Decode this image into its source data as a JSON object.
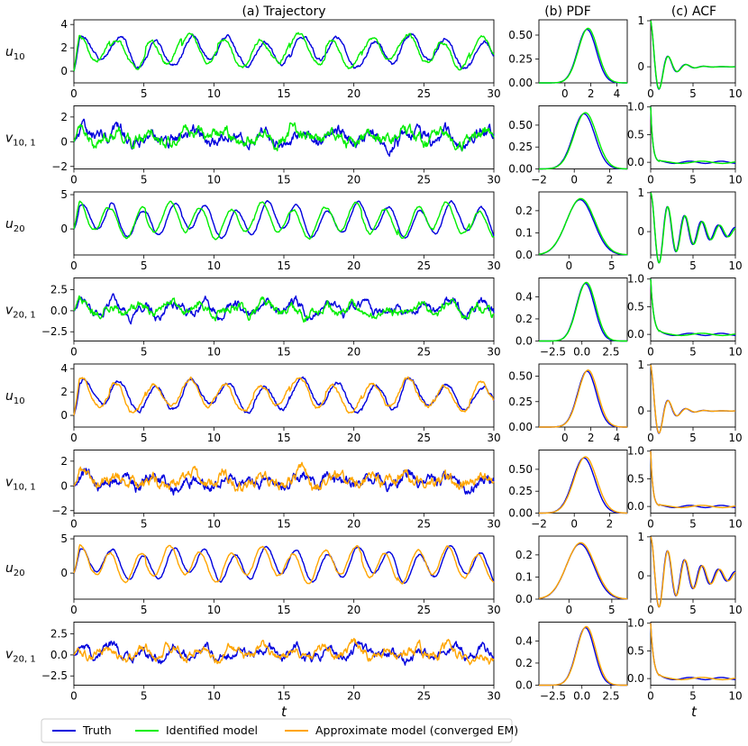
{
  "column_titles": {
    "trajectory": "(a) Trajectory",
    "pdf": "(b) PDF",
    "acf": "(c) ACF"
  },
  "xlabels": {
    "trajectory": "t",
    "acf": "t"
  },
  "legend": [
    {
      "key": "truth",
      "label": "Truth",
      "color": "#0000dd"
    },
    {
      "key": "identified",
      "label": "Identified model",
      "color": "#00ee00"
    },
    {
      "key": "approx",
      "label": "Approximate model (converged EM)",
      "color": "#ffa500"
    }
  ],
  "chart_data": {
    "type": "line",
    "description_rows": 8,
    "rows": [
      {
        "label_base": "u",
        "label_sub": "10",
        "compare": "identified",
        "trajectory": {
          "xlim": [
            0,
            30
          ],
          "ylim": [
            -1,
            4.4
          ],
          "yticks": [
            "0",
            "2",
            "4"
          ],
          "ytick_values": [
            0,
            2,
            4
          ],
          "mean": 1.7,
          "amp": 1.1,
          "noise": 0.15,
          "period": 2.6,
          "seed": 1
        },
        "pdf": {
          "xlim": [
            -2,
            4.8
          ],
          "ylim": [
            0,
            0.66
          ],
          "xticks": [
            "0",
            "2",
            "4"
          ],
          "xtick_values": [
            0,
            2,
            4
          ],
          "yticks": [
            "0.00",
            "0.25",
            "0.50"
          ],
          "ytick_values": [
            0,
            0.25,
            0.5
          ],
          "mu": 1.7,
          "sigma": 0.72,
          "peak": 0.56
        },
        "acf": {
          "xlim": [
            0,
            10
          ],
          "ylim": [
            -0.35,
            1.02
          ],
          "xticks": [
            "0",
            "5",
            "10"
          ],
          "xtick_values": [
            0,
            5,
            10
          ],
          "yticks": [
            "0",
            "1"
          ],
          "ytick_values": [
            0,
            1
          ],
          "decay": 1.4,
          "period": 2.1,
          "floor": 0.0
        }
      },
      {
        "label_base": "v",
        "label_sub": "10, 1",
        "compare": "identified",
        "trajectory": {
          "xlim": [
            0,
            30
          ],
          "ylim": [
            -2.2,
            2.9
          ],
          "yticks": [
            "−2",
            "0",
            "2"
          ],
          "ytick_values": [
            -2,
            0,
            2
          ],
          "mean": 0.4,
          "amp": 0.35,
          "noise": 0.45,
          "period": 2.6,
          "seed": 2
        },
        "pdf": {
          "xlim": [
            -2,
            3
          ],
          "ylim": [
            0,
            0.72
          ],
          "xticks": [
            "−2",
            "0",
            "2"
          ],
          "xtick_values": [
            -2,
            0,
            2
          ],
          "yticks": [
            "0.00",
            "0.25",
            "0.50"
          ],
          "ytick_values": [
            0,
            0.25,
            0.5
          ],
          "mu": 0.55,
          "sigma": 0.62,
          "peak": 0.63
        },
        "acf": {
          "xlim": [
            0,
            10
          ],
          "ylim": [
            -0.12,
            1.02
          ],
          "xticks": [
            "0",
            "5",
            "10"
          ],
          "xtick_values": [
            0,
            5,
            10
          ],
          "yticks": [
            "0.0",
            "0.5",
            "1.0"
          ],
          "ytick_values": [
            0,
            0.5,
            1
          ],
          "decay": 0.25,
          "period": 0,
          "floor": 0.0
        }
      },
      {
        "label_base": "u",
        "label_sub": "20",
        "compare": "identified",
        "trajectory": {
          "xlim": [
            0,
            30
          ],
          "ylim": [
            -3.8,
            5.4
          ],
          "yticks": [
            "0",
            "5"
          ],
          "ytick_values": [
            0,
            5
          ],
          "mean": 1.3,
          "amp": 2.0,
          "noise": 0.15,
          "period": 2.2,
          "seed": 3
        },
        "pdf": {
          "xlim": [
            -3.5,
            6.8
          ],
          "ylim": [
            0,
            0.285
          ],
          "xticks": [
            "0",
            "5"
          ],
          "xtick_values": [
            0,
            5
          ],
          "yticks": [
            "0.0",
            "0.1",
            "0.2"
          ],
          "ytick_values": [
            0,
            0.1,
            0.2
          ],
          "mu": 1.3,
          "sigma": 1.6,
          "peak": 0.25
        },
        "acf": {
          "xlim": [
            0,
            10
          ],
          "ylim": [
            -0.6,
            1.02
          ],
          "xticks": [
            "0",
            "5",
            "10"
          ],
          "xtick_values": [
            0,
            5,
            10
          ],
          "yticks": [
            "0",
            "1"
          ],
          "ytick_values": [
            0,
            1
          ],
          "decay": 4.5,
          "period": 2.0,
          "floor": 0.0
        }
      },
      {
        "label_base": "v",
        "label_sub": "20, 1",
        "compare": "identified",
        "trajectory": {
          "xlim": [
            0,
            30
          ],
          "ylim": [
            -3.6,
            3.9
          ],
          "yticks": [
            "−2.5",
            "0.0",
            "2.5"
          ],
          "ytick_values": [
            -2.5,
            0,
            2.5
          ],
          "mean": 0.2,
          "amp": 0.6,
          "noise": 0.5,
          "period": 2.2,
          "seed": 4
        },
        "pdf": {
          "xlim": [
            -3.7,
            3.9
          ],
          "ylim": [
            0,
            0.57
          ],
          "xticks": [
            "−2.5",
            "0.0",
            "2.5"
          ],
          "xtick_values": [
            -2.5,
            0,
            2.5
          ],
          "yticks": [
            "0.0",
            "0.2",
            "0.4"
          ],
          "ytick_values": [
            0,
            0.2,
            0.4
          ],
          "mu": 0.3,
          "sigma": 0.78,
          "peak": 0.52
        },
        "acf": {
          "xlim": [
            0,
            10
          ],
          "ylim": [
            -0.12,
            1.02
          ],
          "xticks": [
            "0",
            "5",
            "10"
          ],
          "xtick_values": [
            0,
            5,
            10
          ],
          "yticks": [
            "0.0",
            "0.5",
            "1.0"
          ],
          "ytick_values": [
            0,
            0.5,
            1
          ],
          "decay": 0.35,
          "period": 0,
          "floor": 0.0
        }
      },
      {
        "label_base": "u",
        "label_sub": "10",
        "compare": "approx",
        "trajectory": {
          "xlim": [
            0,
            30
          ],
          "ylim": [
            -1,
            4.4
          ],
          "yticks": [
            "0",
            "2",
            "4"
          ],
          "ytick_values": [
            0,
            2,
            4
          ],
          "mean": 1.7,
          "amp": 1.1,
          "noise": 0.15,
          "period": 2.6,
          "seed": 5
        },
        "pdf": {
          "xlim": [
            -2,
            4.8
          ],
          "ylim": [
            0,
            0.62
          ],
          "xticks": [
            "0",
            "2",
            "4"
          ],
          "xtick_values": [
            0,
            2,
            4
          ],
          "yticks": [
            "0.00",
            "0.25",
            "0.50"
          ],
          "ytick_values": [
            0,
            0.25,
            0.5
          ],
          "mu": 1.7,
          "sigma": 0.72,
          "peak": 0.55
        },
        "acf": {
          "xlim": [
            0,
            10
          ],
          "ylim": [
            -0.35,
            1.02
          ],
          "xticks": [
            "0",
            "5",
            "10"
          ],
          "xtick_values": [
            0,
            5,
            10
          ],
          "yticks": [
            "0",
            "1"
          ],
          "ytick_values": [
            0,
            1
          ],
          "decay": 1.4,
          "period": 2.1,
          "floor": 0.0
        }
      },
      {
        "label_base": "v",
        "label_sub": "10, 1",
        "compare": "approx",
        "trajectory": {
          "xlim": [
            0,
            30
          ],
          "ylim": [
            -2.2,
            2.9
          ],
          "yticks": [
            "−2",
            "0",
            "2"
          ],
          "ytick_values": [
            -2,
            0,
            2
          ],
          "mean": 0.4,
          "amp": 0.35,
          "noise": 0.45,
          "period": 2.6,
          "seed": 6
        },
        "pdf": {
          "xlim": [
            -2,
            3
          ],
          "ylim": [
            0,
            0.72
          ],
          "xticks": [
            "−2",
            "0",
            "2"
          ],
          "xtick_values": [
            -2,
            0,
            2
          ],
          "yticks": [
            "0.00",
            "0.25",
            "0.50"
          ],
          "ytick_values": [
            0,
            0.25,
            0.5
          ],
          "mu": 0.55,
          "sigma": 0.62,
          "peak": 0.63
        },
        "acf": {
          "xlim": [
            0,
            10
          ],
          "ylim": [
            -0.12,
            1.02
          ],
          "xticks": [
            "0",
            "5",
            "10"
          ],
          "xtick_values": [
            0,
            5,
            10
          ],
          "yticks": [
            "0.0",
            "0.5",
            "1.0"
          ],
          "ytick_values": [
            0,
            0.5,
            1
          ],
          "decay": 0.25,
          "period": 0,
          "floor": 0.0
        }
      },
      {
        "label_base": "u",
        "label_sub": "20",
        "compare": "approx",
        "trajectory": {
          "xlim": [
            0,
            30
          ],
          "ylim": [
            -3.8,
            5.4
          ],
          "yticks": [
            "0",
            "5"
          ],
          "ytick_values": [
            0,
            5
          ],
          "mean": 1.3,
          "amp": 2.0,
          "noise": 0.15,
          "period": 2.2,
          "seed": 7
        },
        "pdf": {
          "xlim": [
            -3.5,
            6.8
          ],
          "ylim": [
            0,
            0.285
          ],
          "xticks": [
            "0",
            "5"
          ],
          "xtick_values": [
            0,
            5
          ],
          "yticks": [
            "0.0",
            "0.1",
            "0.2"
          ],
          "ytick_values": [
            0,
            0.1,
            0.2
          ],
          "mu": 1.3,
          "sigma": 1.6,
          "peak": 0.25
        },
        "acf": {
          "xlim": [
            0,
            10
          ],
          "ylim": [
            -0.6,
            1.02
          ],
          "xticks": [
            "0",
            "5",
            "10"
          ],
          "xtick_values": [
            0,
            5,
            10
          ],
          "yticks": [
            "0",
            "1"
          ],
          "ytick_values": [
            0,
            1
          ],
          "decay": 4.5,
          "period": 2.0,
          "floor": 0.0
        }
      },
      {
        "label_base": "v",
        "label_sub": "20, 1",
        "compare": "approx",
        "trajectory": {
          "xlim": [
            0,
            30
          ],
          "ylim": [
            -3.6,
            3.9
          ],
          "yticks": [
            "−2.5",
            "0.0",
            "2.5"
          ],
          "ytick_values": [
            -2.5,
            0,
            2.5
          ],
          "mean": 0.2,
          "amp": 0.6,
          "noise": 0.5,
          "period": 2.2,
          "seed": 8
        },
        "pdf": {
          "xlim": [
            -3.7,
            3.9
          ],
          "ylim": [
            0,
            0.57
          ],
          "xticks": [
            "−2.5",
            "0.0",
            "2.5"
          ],
          "xtick_values": [
            -2.5,
            0,
            2.5
          ],
          "yticks": [
            "0.0",
            "0.2",
            "0.4"
          ],
          "ytick_values": [
            0,
            0.2,
            0.4
          ],
          "mu": 0.3,
          "sigma": 0.78,
          "peak": 0.52
        },
        "acf": {
          "xlim": [
            0,
            10
          ],
          "ylim": [
            -0.12,
            1.02
          ],
          "xticks": [
            "0",
            "5",
            "10"
          ],
          "xtick_values": [
            0,
            5,
            10
          ],
          "yticks": [
            "0.0",
            "0.5",
            "1.0"
          ],
          "ytick_values": [
            0,
            0.5,
            1
          ],
          "decay": 0.35,
          "period": 0,
          "floor": 0.0
        }
      }
    ],
    "trajectory_xticks": [
      "0",
      "5",
      "10",
      "15",
      "20",
      "25",
      "30"
    ],
    "trajectory_xtick_values": [
      0,
      5,
      10,
      15,
      20,
      25,
      30
    ]
  }
}
